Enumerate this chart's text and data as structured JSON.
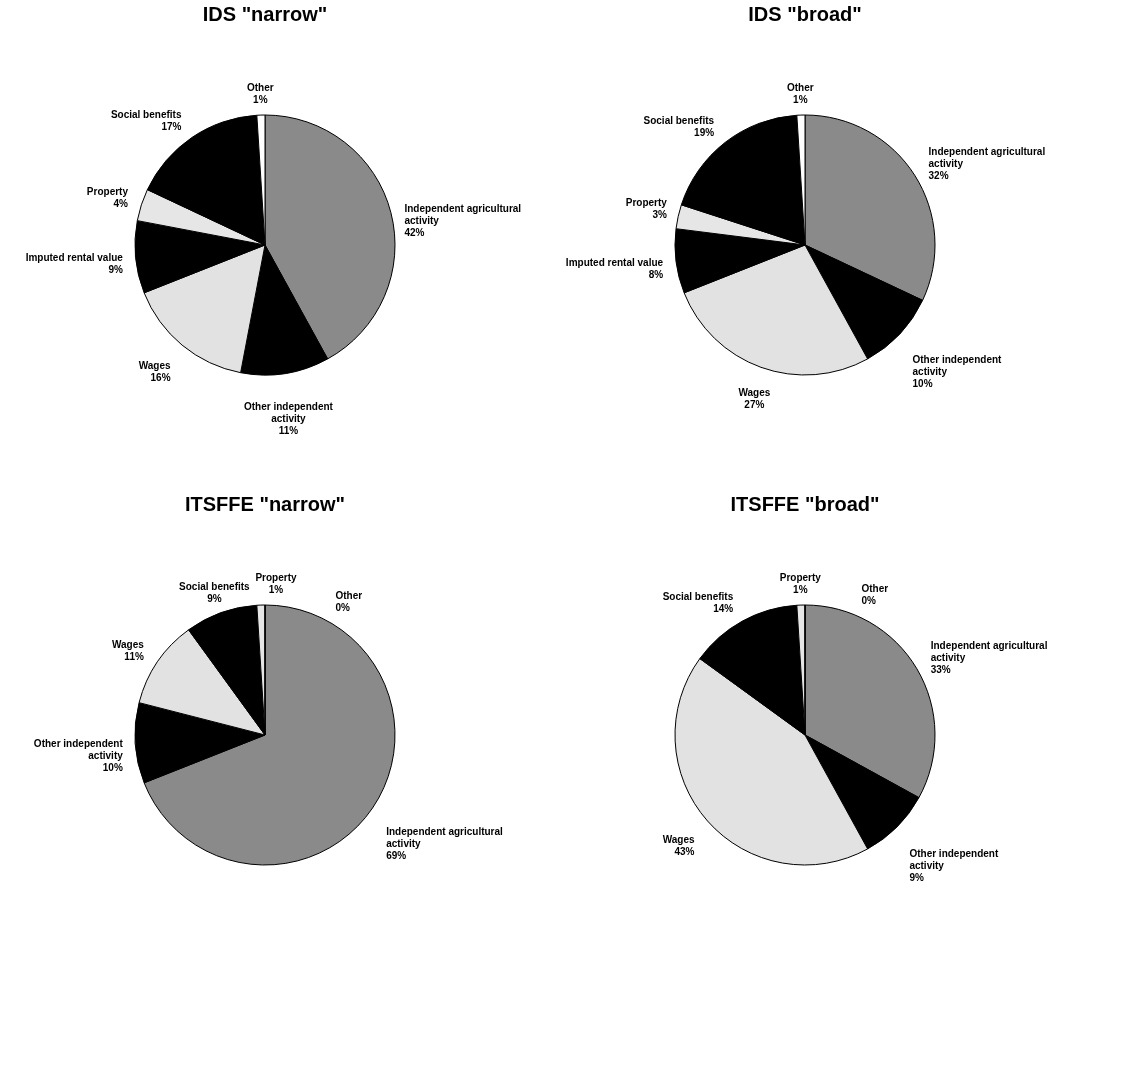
{
  "chart_data": [
    {
      "type": "pie",
      "title": "IDS \"narrow\"",
      "categories": [
        "Independent agricultural activity",
        "Other independent activity",
        "Wages",
        "Imputed rental value",
        "Property",
        "Social benefits",
        "Other"
      ],
      "values": [
        42,
        11,
        16,
        9,
        4,
        17,
        1
      ],
      "value_labels": [
        "42%",
        "11%",
        "16%",
        "9%",
        "4%",
        "17%",
        "1%"
      ],
      "colors": [
        "#8a8a8a",
        "#000000",
        "#e2e2e2",
        "#000000",
        "#e6e6e6",
        "#000000",
        "#ffffff"
      ]
    },
    {
      "type": "pie",
      "title": "IDS \"broad\"",
      "categories": [
        "Independent agricultural activity",
        "Other independent activity",
        "Wages",
        "Imputed rental value",
        "Property",
        "Social benefits",
        "Other"
      ],
      "values": [
        32,
        10,
        27,
        8,
        3,
        19,
        1
      ],
      "value_labels": [
        "32%",
        "10%",
        "27%",
        "8%",
        "3%",
        "19%",
        "1%"
      ],
      "colors": [
        "#8a8a8a",
        "#000000",
        "#e2e2e2",
        "#000000",
        "#e6e6e6",
        "#000000",
        "#ffffff"
      ]
    },
    {
      "type": "pie",
      "title": "ITSFFE \"narrow\"",
      "categories": [
        "Independent agricultural activity",
        "Other independent activity",
        "Wages",
        "Social benefits",
        "Property",
        "Other"
      ],
      "values": [
        69,
        10,
        11,
        9,
        1,
        0
      ],
      "value_labels": [
        "69%",
        "10%",
        "11%",
        "9%",
        "1%",
        "0%"
      ],
      "colors": [
        "#8a8a8a",
        "#000000",
        "#e2e2e2",
        "#000000",
        "#e6e6e6",
        "#ffffff"
      ]
    },
    {
      "type": "pie",
      "title": "ITSFFE \"broad\"",
      "categories": [
        "Independent agricultural activity",
        "Other independent activity",
        "Wages",
        "Social benefits",
        "Property",
        "Other"
      ],
      "values": [
        33,
        9,
        43,
        14,
        1,
        0
      ],
      "value_labels": [
        "33%",
        "9%",
        "43%",
        "14%",
        "1%",
        "0%"
      ],
      "colors": [
        "#8a8a8a",
        "#000000",
        "#d8d8d8",
        "#000000",
        "#e6e6e6",
        "#ffffff"
      ]
    }
  ]
}
